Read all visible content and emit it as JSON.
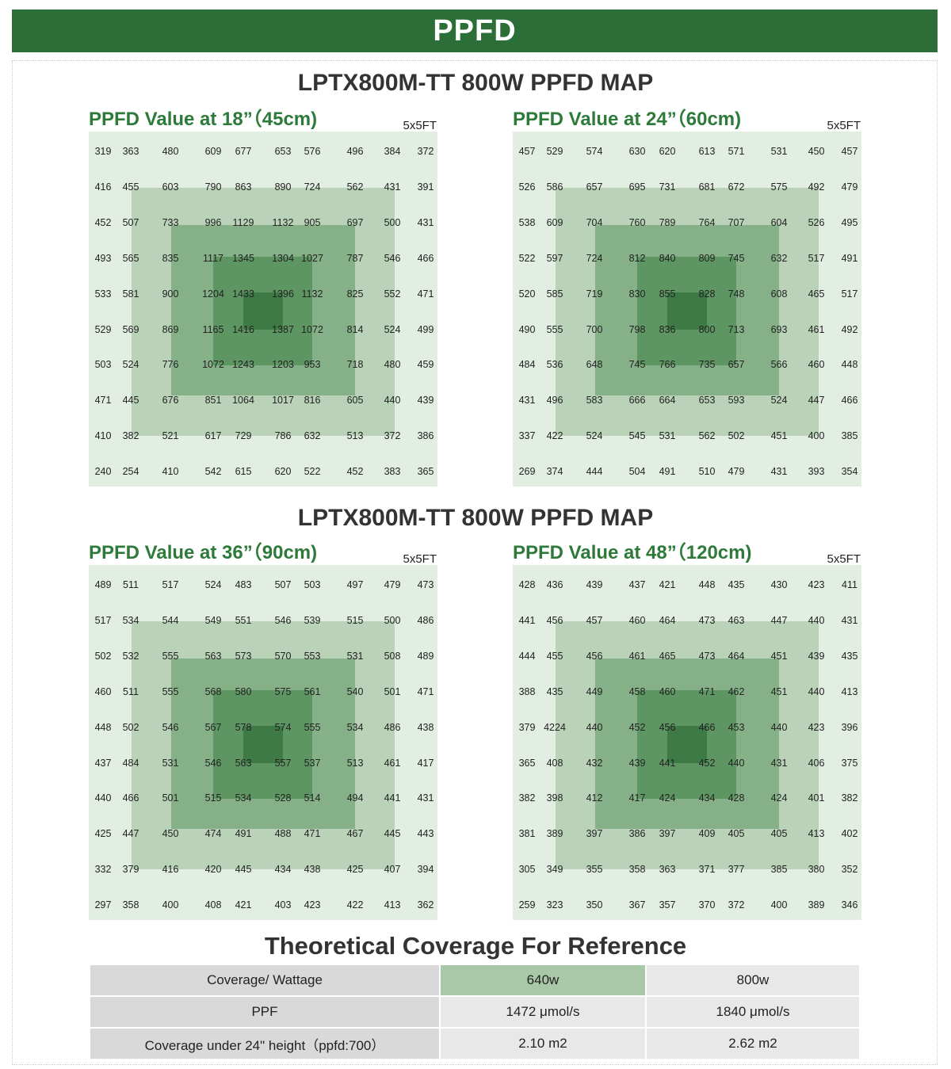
{
  "header": {
    "title": "PPFD"
  },
  "section_titles": [
    "LPTX800M-TT 800W PPFD MAP",
    "LPTX800M-TT 800W PPFD MAP"
  ],
  "panels": [
    {
      "title": "PPFD Value at 18”（45cm)",
      "size": "5x5FT"
    },
    {
      "title": "PPFD Value at 24”（60cm)",
      "size": "5x5FT"
    },
    {
      "title": "PPFD Value at 36”（90cm)",
      "size": "5x5FT"
    },
    {
      "title": "PPFD Value at 48”（120cm)",
      "size": "5x5FT"
    }
  ],
  "chart_data": [
    {
      "type": "heatmap",
      "title": "PPFD Value at 18”（45cm)",
      "grid": [
        [
          319,
          363,
          480,
          609,
          677,
          653,
          576,
          496,
          384,
          372
        ],
        [
          416,
          455,
          603,
          790,
          863,
          890,
          724,
          562,
          431,
          391
        ],
        [
          452,
          507,
          733,
          996,
          1129,
          1132,
          905,
          697,
          500,
          431
        ],
        [
          493,
          565,
          835,
          1117,
          1345,
          1304,
          1027,
          787,
          546,
          466
        ],
        [
          533,
          581,
          900,
          1204,
          1433,
          1396,
          1132,
          825,
          552,
          471
        ],
        [
          529,
          569,
          869,
          1165,
          1416,
          1387,
          1072,
          814,
          524,
          499
        ],
        [
          503,
          524,
          776,
          1072,
          1243,
          1203,
          953,
          718,
          480,
          459
        ],
        [
          471,
          445,
          676,
          851,
          1064,
          1017,
          816,
          605,
          440,
          439
        ],
        [
          410,
          382,
          521,
          617,
          729,
          786,
          632,
          513,
          372,
          386
        ],
        [
          240,
          254,
          410,
          542,
          615,
          620,
          522,
          452,
          383,
          365
        ]
      ]
    },
    {
      "type": "heatmap",
      "title": "PPFD Value at 24”（60cm)",
      "grid": [
        [
          457,
          529,
          574,
          630,
          620,
          613,
          571,
          531,
          450,
          457
        ],
        [
          526,
          586,
          657,
          695,
          731,
          681,
          672,
          575,
          492,
          479
        ],
        [
          538,
          609,
          704,
          760,
          789,
          764,
          707,
          604,
          526,
          495
        ],
        [
          522,
          597,
          724,
          812,
          840,
          809,
          745,
          632,
          517,
          491
        ],
        [
          520,
          585,
          719,
          830,
          855,
          828,
          748,
          608,
          465,
          517
        ],
        [
          490,
          555,
          700,
          798,
          836,
          800,
          713,
          693,
          461,
          492
        ],
        [
          484,
          536,
          648,
          745,
          766,
          735,
          657,
          566,
          460,
          448
        ],
        [
          431,
          496,
          583,
          666,
          664,
          653,
          593,
          524,
          447,
          466
        ],
        [
          337,
          422,
          524,
          545,
          531,
          562,
          502,
          451,
          400,
          385
        ],
        [
          269,
          374,
          444,
          504,
          491,
          510,
          479,
          431,
          393,
          354
        ]
      ]
    },
    {
      "type": "heatmap",
      "title": "PPFD Value at 36”（90cm)",
      "grid": [
        [
          489,
          511,
          517,
          524,
          483,
          507,
          503,
          497,
          479,
          473
        ],
        [
          517,
          534,
          544,
          549,
          551,
          546,
          539,
          515,
          500,
          486
        ],
        [
          502,
          532,
          555,
          563,
          573,
          570,
          553,
          531,
          508,
          489
        ],
        [
          460,
          511,
          555,
          568,
          580,
          575,
          561,
          540,
          501,
          471
        ],
        [
          448,
          502,
          546,
          567,
          578,
          574,
          555,
          534,
          486,
          438
        ],
        [
          437,
          484,
          531,
          546,
          563,
          557,
          537,
          513,
          461,
          417
        ],
        [
          440,
          466,
          501,
          515,
          534,
          528,
          514,
          494,
          441,
          431
        ],
        [
          425,
          447,
          450,
          474,
          491,
          488,
          471,
          467,
          445,
          443
        ],
        [
          332,
          379,
          416,
          420,
          445,
          434,
          438,
          425,
          407,
          394
        ],
        [
          297,
          358,
          400,
          408,
          421,
          403,
          423,
          422,
          413,
          362
        ]
      ]
    },
    {
      "type": "heatmap",
      "title": "PPFD Value at 48”（120cm)",
      "grid": [
        [
          428,
          436,
          439,
          437,
          421,
          448,
          435,
          430,
          423,
          411
        ],
        [
          441,
          456,
          457,
          460,
          464,
          473,
          463,
          447,
          440,
          431
        ],
        [
          444,
          455,
          456,
          461,
          465,
          473,
          464,
          451,
          439,
          435
        ],
        [
          388,
          435,
          449,
          458,
          460,
          471,
          462,
          451,
          440,
          413
        ],
        [
          379,
          4224,
          440,
          452,
          456,
          466,
          453,
          440,
          423,
          396
        ],
        [
          365,
          408,
          432,
          439,
          441,
          452,
          440,
          431,
          406,
          375
        ],
        [
          382,
          398,
          412,
          417,
          424,
          434,
          428,
          424,
          401,
          382
        ],
        [
          381,
          389,
          397,
          386,
          397,
          409,
          405,
          405,
          413,
          402
        ],
        [
          305,
          349,
          355,
          358,
          363,
          371,
          377,
          385,
          380,
          352
        ],
        [
          259,
          323,
          350,
          367,
          357,
          370,
          372,
          400,
          389,
          346
        ]
      ]
    }
  ],
  "coverage": {
    "title": "Theoretical Coverage For Reference",
    "rows": [
      [
        "Coverage/ Wattage",
        "640w",
        "800w"
      ],
      [
        "PPF",
        "1472 μmol/s",
        "1840 μmol/s"
      ],
      [
        "Coverage under  24\" height（ppfd:700）",
        "2.10 m2",
        "2.62  m2"
      ]
    ]
  },
  "colors": {
    "header_bg": "#2c6e37",
    "panel_title": "#2d7a3a",
    "grid_bg": "#e3eee2",
    "ring1": "#b9d2b8",
    "ring2": "#86b188",
    "ring3": "#5e9663",
    "ring4": "#3d7a45",
    "coverage_highlight": "#a9c8a8"
  }
}
